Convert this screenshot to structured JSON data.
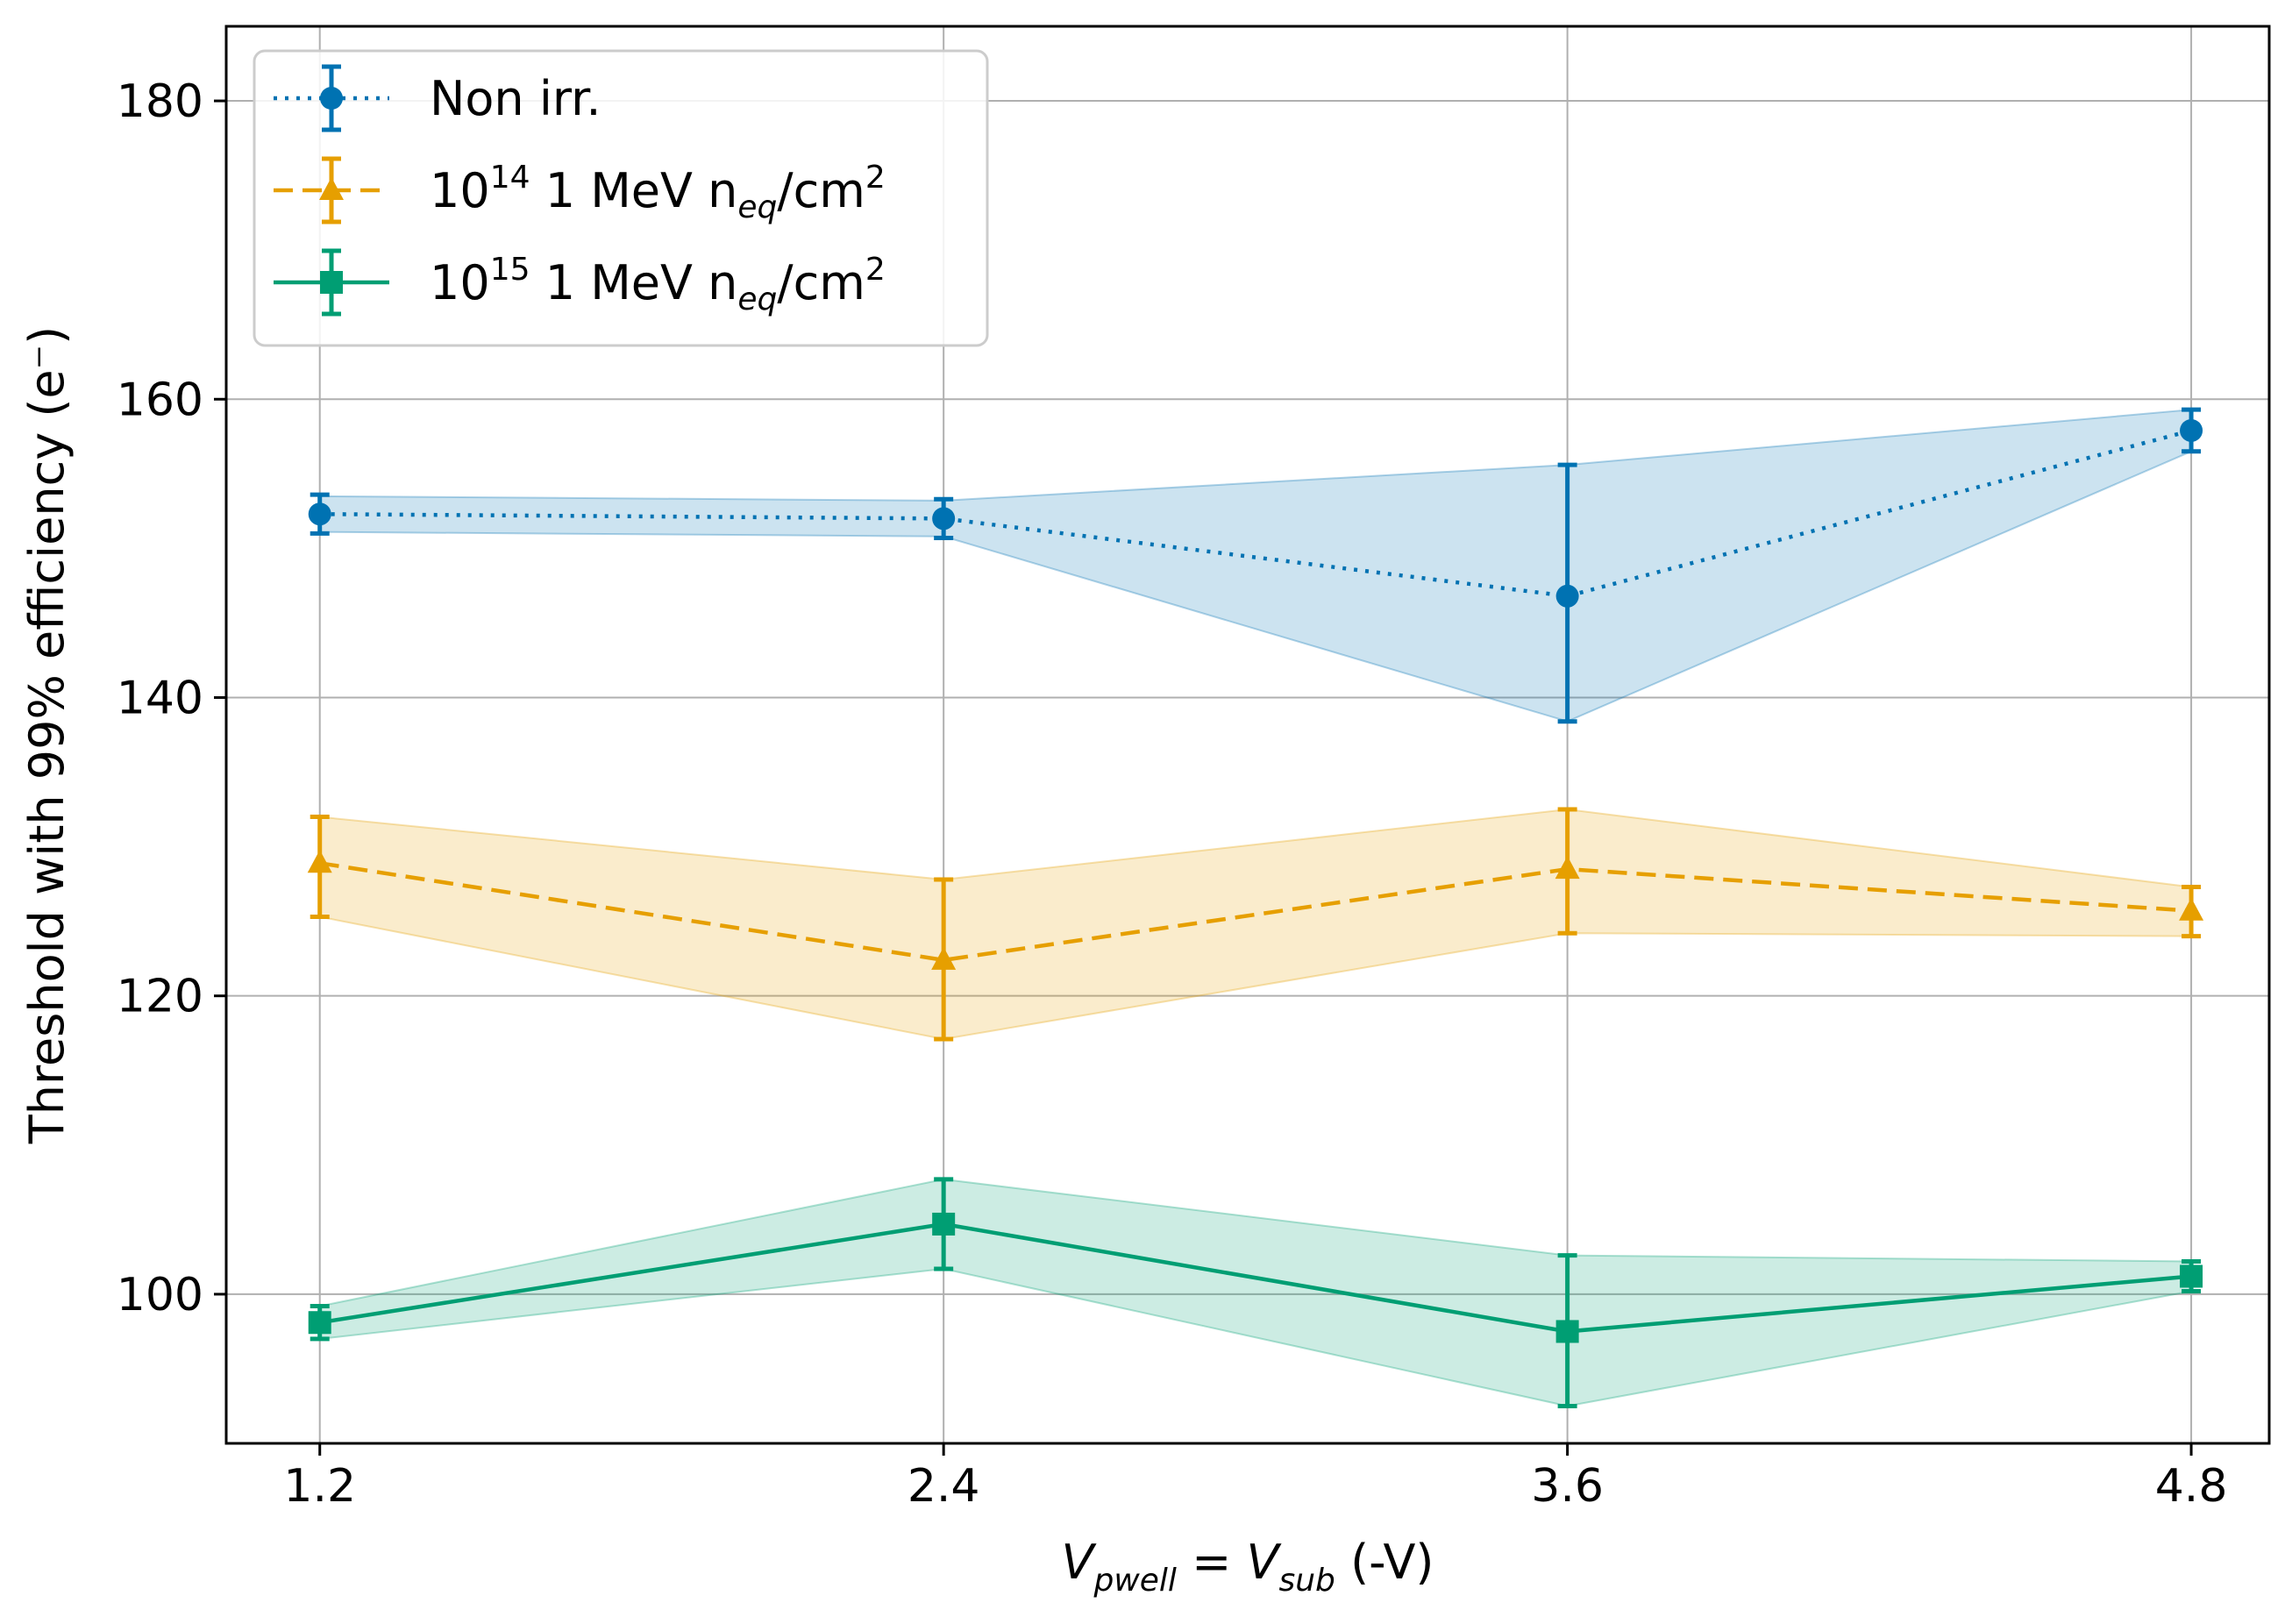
{
  "chart_data": {
    "type": "line",
    "title": "",
    "xlabel": {
      "v1": "V",
      "v1_sub": "pwell",
      "eq": " = ",
      "v2": "V",
      "v2_sub": "sub",
      "unit": " (-V)"
    },
    "ylabel": "Threshold with 99% efficiency (e⁻)",
    "x": [
      1.2,
      2.4,
      3.6,
      4.8
    ],
    "x_tick_labels": [
      "1.2",
      "2.4",
      "3.6",
      "4.8"
    ],
    "y_ticks": [
      100,
      120,
      140,
      160,
      180
    ],
    "y_tick_labels": [
      "100",
      "120",
      "140",
      "160",
      "180"
    ],
    "xlim": [
      1.02,
      4.95
    ],
    "ylim": [
      90,
      185
    ],
    "grid": true,
    "legend_position": "top-left",
    "series": [
      {
        "name": "Non irr.",
        "legend": {
          "base": "Non irr.",
          "exp": "",
          "mid": "",
          "sub": "",
          "tail": "",
          "exp2": ""
        },
        "color": "#0072b2",
        "line_style": "dotted",
        "marker": "circle",
        "values": [
          152.3,
          152.0,
          146.8,
          157.9
        ],
        "err_low": [
          1.3,
          1.3,
          8.4,
          1.4
        ],
        "err_high": [
          1.3,
          1.3,
          8.8,
          1.4
        ],
        "band_low": [
          151.1,
          150.8,
          138.4,
          156.5
        ],
        "band_high": [
          153.5,
          153.2,
          155.6,
          159.3
        ]
      },
      {
        "name": "10^14 1 MeV n_eq/cm^2",
        "legend": {
          "base": "10",
          "exp": "14",
          "mid": " 1 MeV n",
          "sub": "eq",
          "tail": "/cm",
          "exp2": "2"
        },
        "color": "#e69f00",
        "line_style": "dashed",
        "marker": "triangle",
        "values": [
          128.9,
          122.4,
          128.5,
          125.7
        ],
        "err_low": [
          3.6,
          5.3,
          4.3,
          1.7
        ],
        "err_high": [
          3.1,
          5.4,
          4.0,
          1.6
        ],
        "band_low": [
          125.3,
          117.1,
          124.2,
          124.0
        ],
        "band_high": [
          132.0,
          127.8,
          132.5,
          127.3
        ]
      },
      {
        "name": "10^15 1 MeV n_eq/cm^2",
        "legend": {
          "base": "10",
          "exp": "15",
          "mid": " 1 MeV n",
          "sub": "eq",
          "tail": "/cm",
          "exp2": "2"
        },
        "color": "#009e73",
        "line_style": "solid",
        "marker": "square",
        "values": [
          98.1,
          104.7,
          97.5,
          101.2
        ],
        "err_low": [
          1.1,
          3.0,
          5.0,
          1.0
        ],
        "err_high": [
          1.1,
          3.0,
          5.1,
          1.0
        ],
        "band_low": [
          97.0,
          101.7,
          92.5,
          100.2
        ],
        "band_high": [
          99.2,
          107.7,
          102.6,
          102.2
        ]
      }
    ]
  }
}
